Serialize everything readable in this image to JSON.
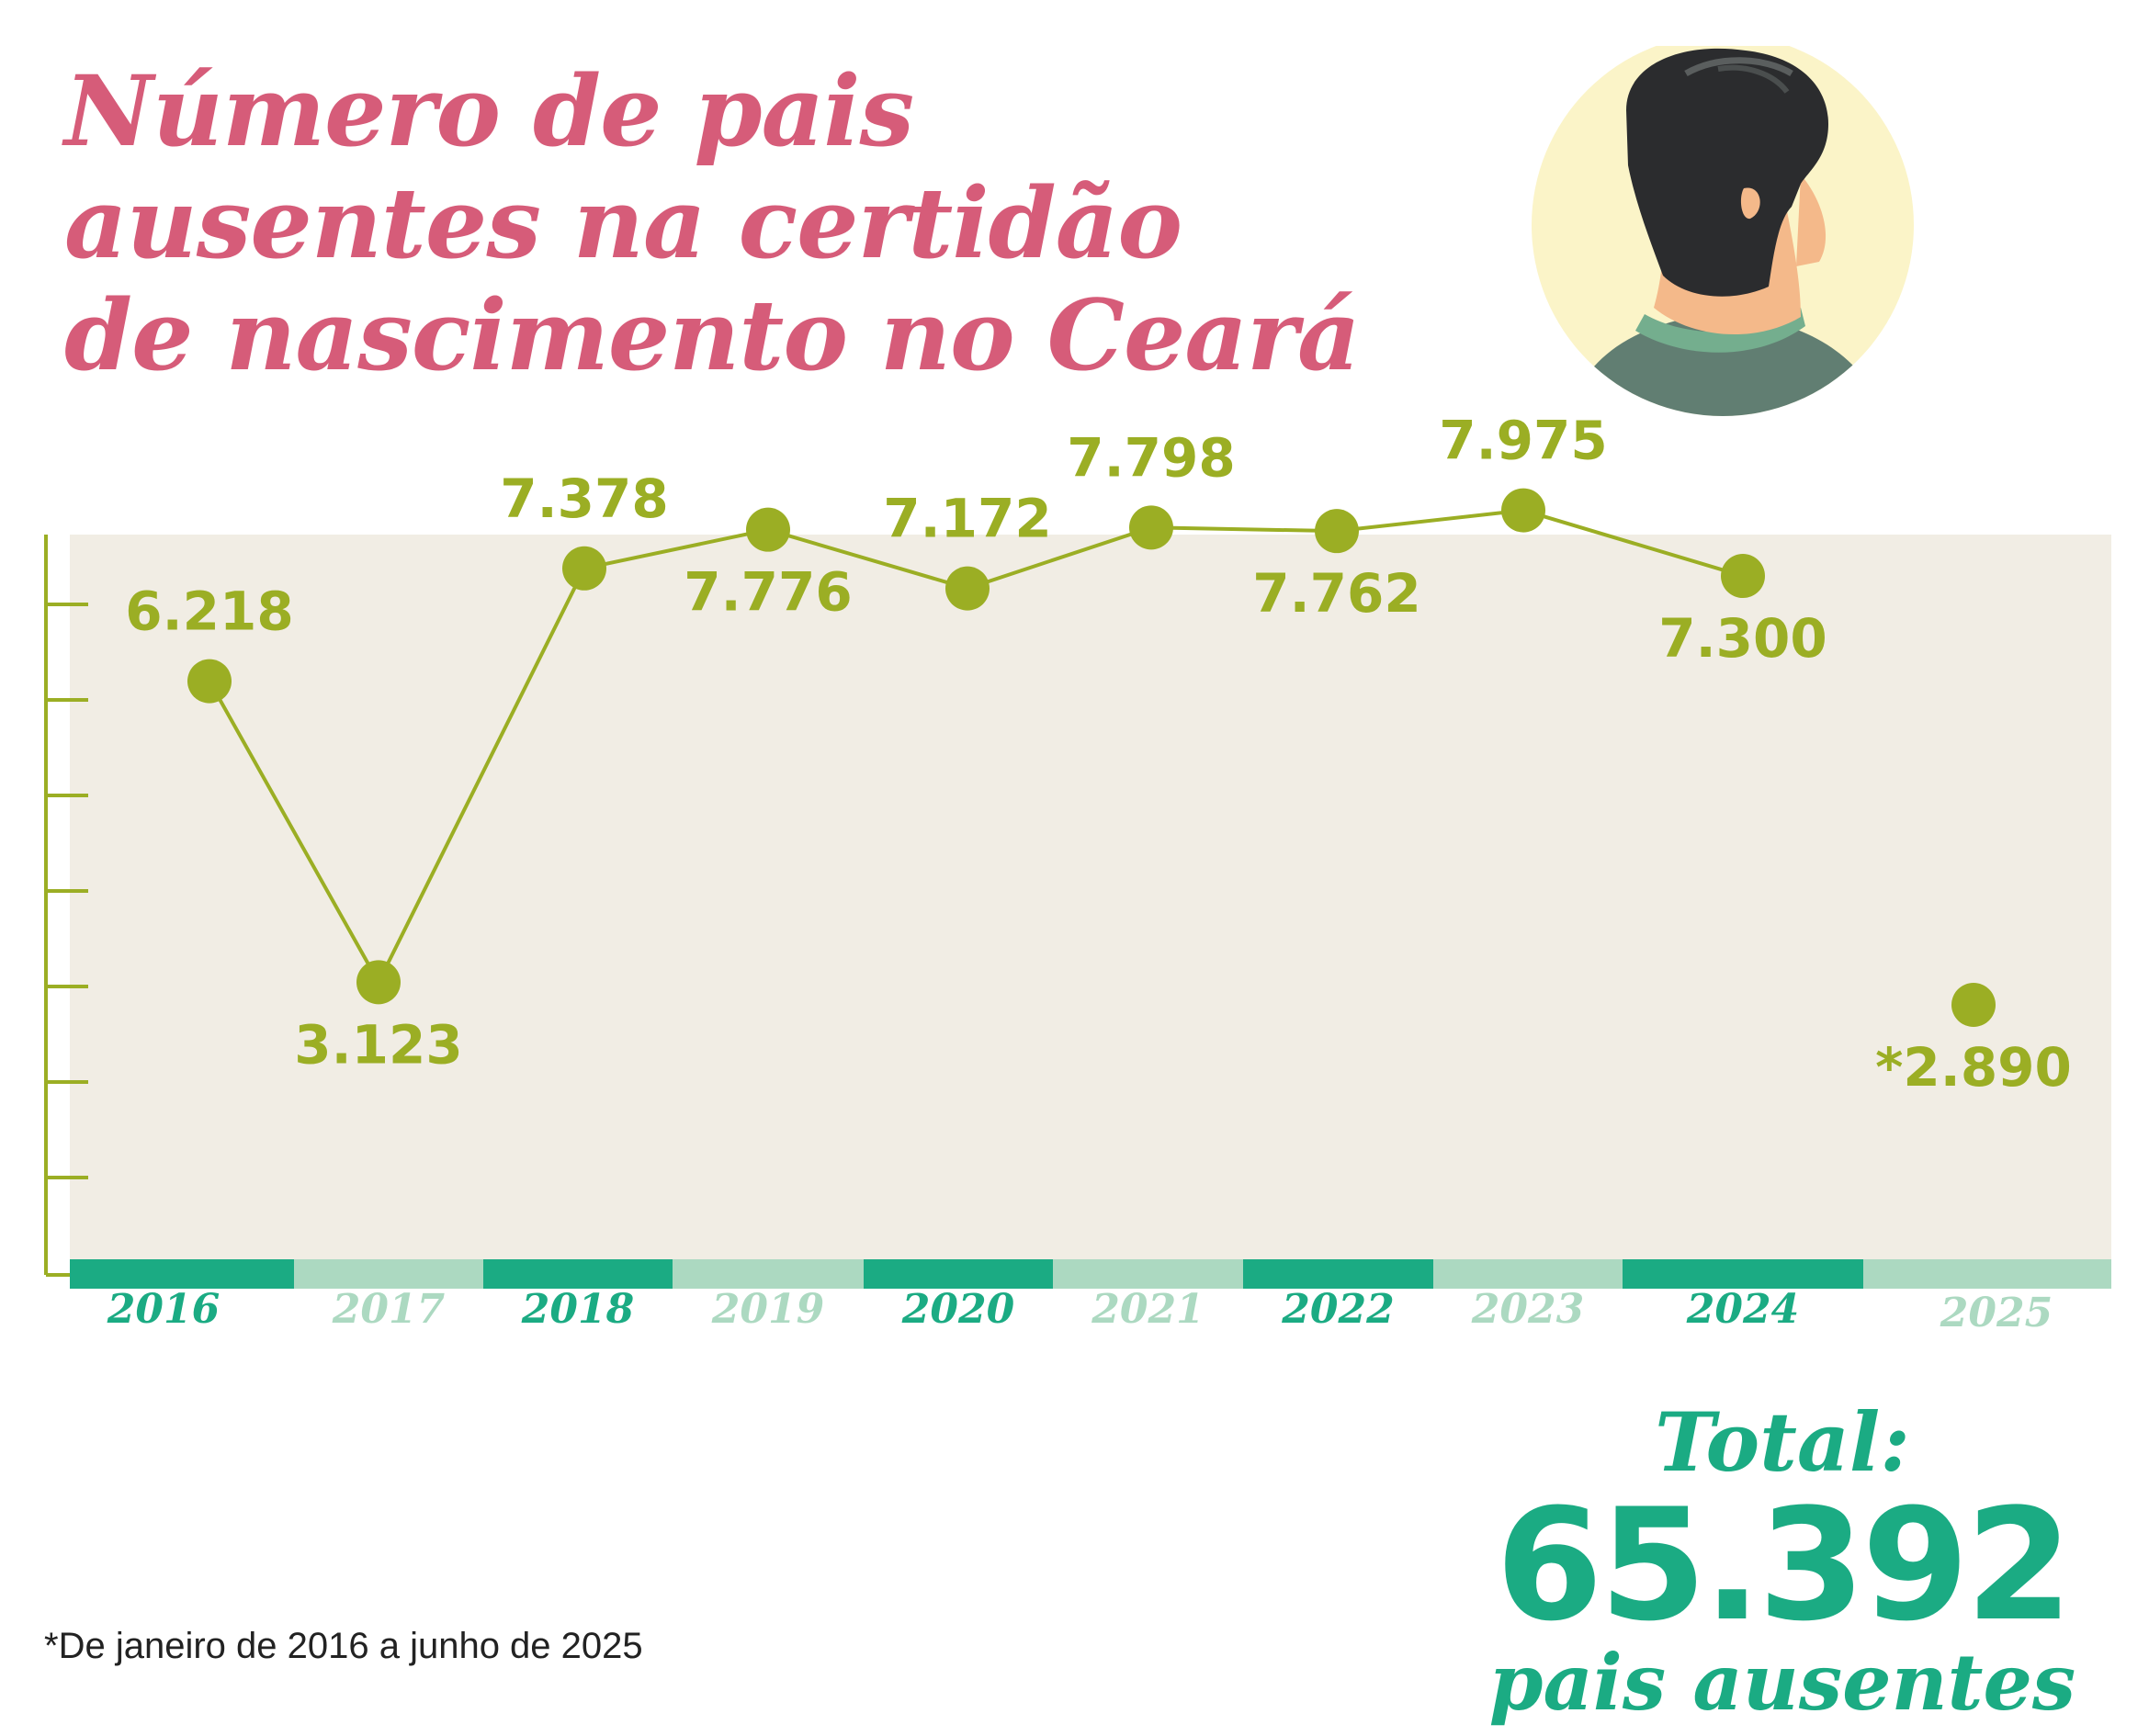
{
  "title_lines": [
    "Número de pais",
    "ausentes na certidão",
    "de nascimento no Ceará"
  ],
  "colors": {
    "title": "#d65c79",
    "accent_green": "#9bae24",
    "teal_dark": "#1bab83",
    "teal_light": "#acd9c1",
    "paper": "#f1ede4",
    "axis": "#9bae24",
    "footnote": "#222222"
  },
  "chart_data": {
    "type": "line",
    "categories": [
      "2016",
      "2017",
      "2018",
      "2019",
      "2020",
      "2021",
      "2022",
      "2023",
      "2024",
      "2025"
    ],
    "series": [
      {
        "values": [
          6218,
          3123,
          7378,
          7776,
          7172,
          7798,
          7762,
          7975,
          7300,
          2890
        ],
        "labels": [
          "6.218",
          "3.123",
          "7.378",
          "7.776",
          "7.172",
          "7.798",
          "7.762",
          "7.975",
          "7.300",
          "*2.890"
        ],
        "connected": [
          true,
          true,
          true,
          true,
          true,
          true,
          true,
          true,
          true,
          false
        ]
      }
    ],
    "label_position": [
      "above",
      "below",
      "above",
      "below",
      "above",
      "above",
      "below",
      "above",
      "below",
      "below"
    ],
    "ylim": [
      0,
      8500
    ],
    "grid": false,
    "legend": "none"
  },
  "total": {
    "label": "Total:",
    "value": "65.392",
    "unit": "pais ausentes"
  },
  "footnote": "*De janeiro de 2016 a junho de 2025",
  "illustration": "man-head-avatar"
}
